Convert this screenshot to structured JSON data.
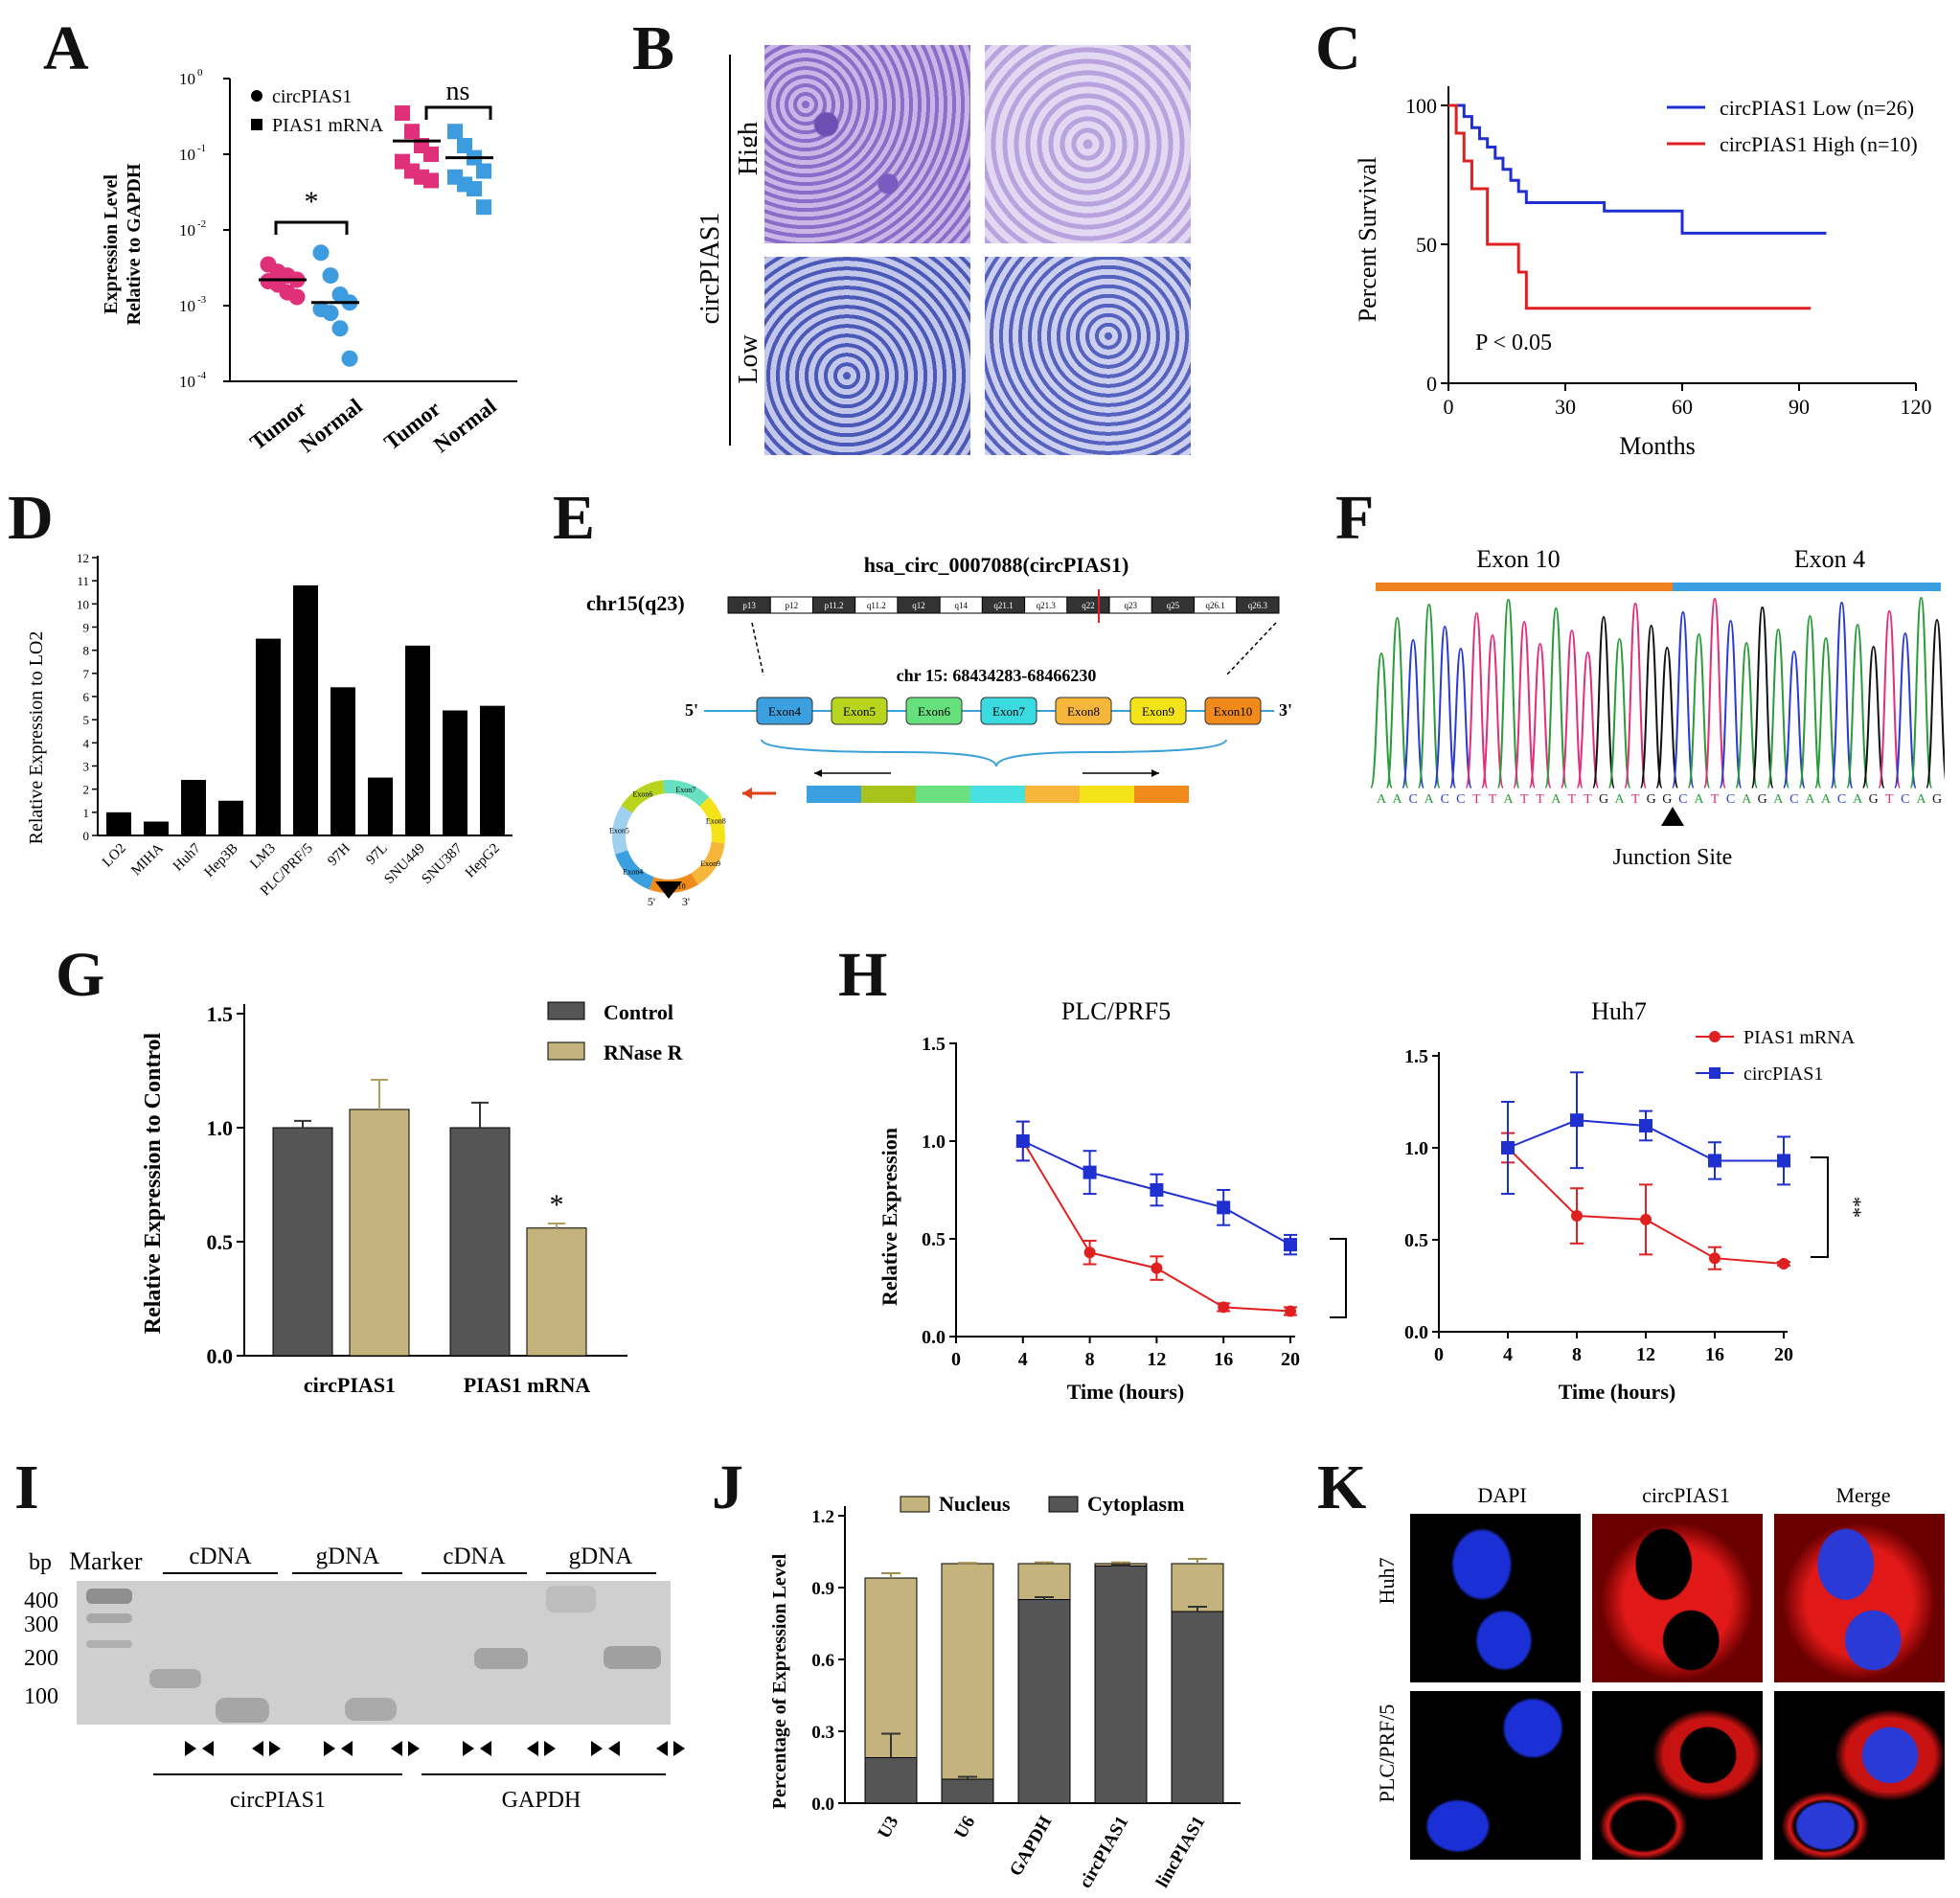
{
  "labels": {
    "A": "A",
    "B": "B",
    "C": "C",
    "D": "D",
    "E": "E",
    "F": "F",
    "G": "G",
    "H": "H",
    "I": "I",
    "J": "J",
    "K": "K"
  },
  "colors": {
    "pink": "#e0307a",
    "blue_dot": "#3d9be0",
    "blue_line": "#1f2fd0",
    "red_line": "#e02020",
    "bar_black": "#000000",
    "bar_gray": "#555555",
    "bar_khaki": "#c4b37c",
    "dapi_blue": "#1a2fd6",
    "circ_red": "#e01818"
  },
  "panelA": {
    "ylabel1": "Expression Level",
    "ylabel2": "Relative to GAPDH",
    "legend": [
      {
        "name": "circPIAS1",
        "marker": "circle"
      },
      {
        "name": "PIAS1 mRNA",
        "marker": "square"
      }
    ],
    "xticks": [
      "Tumor",
      "Normal",
      "Tumor",
      "Normal"
    ],
    "yticks": [
      "10",
      "10",
      "10",
      "10",
      "10"
    ],
    "yexp": [
      "0",
      "-1",
      "-2",
      "-3",
      "-4"
    ],
    "sig_left": "*",
    "sig_right": "ns"
  },
  "chart_data": [
    {
      "type": "scatter",
      "panel": "A",
      "yscale": "log",
      "ylim": [
        0.0001,
        1
      ],
      "categories": [
        "Tumor",
        "Normal",
        "Tumor",
        "Normal"
      ],
      "series": [
        {
          "name": "circPIAS1",
          "groups": [
            {
              "category": "Tumor",
              "values": [
                0.0035,
                0.0028,
                0.0025,
                0.0022,
                0.0021,
                0.0019,
                0.0015,
                0.0013
              ],
              "median": 0.0022
            },
            {
              "category": "Normal",
              "values": [
                0.005,
                0.0025,
                0.0014,
                0.0011,
                0.0009,
                0.0008,
                0.0005,
                0.0002
              ],
              "median": 0.0011
            }
          ]
        },
        {
          "name": "PIAS1 mRNA",
          "groups": [
            {
              "category": "Tumor",
              "values": [
                0.35,
                0.2,
                0.13,
                0.1,
                0.08,
                0.06,
                0.05,
                0.045
              ],
              "median": 0.15
            },
            {
              "category": "Normal",
              "values": [
                0.2,
                0.13,
                0.09,
                0.06,
                0.05,
                0.04,
                0.035,
                0.02
              ],
              "median": 0.09
            }
          ]
        }
      ]
    },
    {
      "type": "line",
      "panel": "C",
      "title": "",
      "xlabel": "Months",
      "ylabel": "Percent Survival",
      "xlim": [
        0,
        120
      ],
      "ylim": [
        0,
        100
      ],
      "xticks": [
        "0",
        "30",
        "60",
        "90",
        "120"
      ],
      "yticks": [
        "0",
        "50",
        "100"
      ],
      "annotation": "P < 0.05",
      "series": [
        {
          "name": "circPIAS1 Low (n=26)",
          "x": [
            0,
            4,
            6,
            8,
            10,
            12,
            14,
            16,
            18,
            20,
            24,
            40,
            60,
            97
          ],
          "y": [
            100,
            96,
            92,
            88,
            85,
            81,
            77,
            73,
            69,
            65,
            65,
            62,
            54,
            54
          ]
        },
        {
          "name": "circPIAS1 High (n=10)",
          "x": [
            0,
            2,
            4,
            6,
            10,
            18,
            20,
            93
          ],
          "y": [
            100,
            90,
            80,
            70,
            50,
            40,
            27,
            27
          ]
        }
      ]
    },
    {
      "type": "bar",
      "panel": "D",
      "ylabel": "Relative Expression to LO2",
      "ylim": [
        0,
        12
      ],
      "yticks": [
        "0",
        "1",
        "2",
        "3",
        "4",
        "5",
        "6",
        "7",
        "8",
        "9",
        "10",
        "11",
        "12"
      ],
      "categories": [
        "LO2",
        "MIHA",
        "Huh7",
        "Hep3B",
        "LM3",
        "PLC/PRF/5",
        "97H",
        "97L",
        "SNU449",
        "SNU387",
        "HepG2"
      ],
      "values": [
        1.0,
        0.6,
        2.4,
        1.5,
        8.5,
        10.8,
        6.4,
        2.5,
        8.2,
        5.4,
        5.6
      ]
    },
    {
      "type": "bar",
      "panel": "G",
      "ylabel": "Relative Expression to Control",
      "ylim": [
        0,
        1.5
      ],
      "yticks": [
        "0.0",
        "0.5",
        "1.0",
        "1.5"
      ],
      "categories": [
        "circPIAS1",
        "PIAS1 mRNA"
      ],
      "series": [
        {
          "name": "Control",
          "values": [
            1.0,
            1.0
          ],
          "errors": [
            0.03,
            0.11
          ]
        },
        {
          "name": "RNase R",
          "values": [
            1.08,
            0.56
          ],
          "errors": [
            0.13,
            0.02
          ]
        }
      ],
      "annotation": "*"
    },
    {
      "type": "line",
      "panel": "H-left",
      "title": "PLC/PRF5",
      "xlabel": "Time (hours)",
      "ylabel": "Relative Expression",
      "xlim": [
        0,
        20
      ],
      "ylim": [
        0,
        1.5
      ],
      "xticks": [
        "0",
        "4",
        "8",
        "12",
        "16",
        "20"
      ],
      "yticks": [
        "0.0",
        "0.5",
        "1.0",
        "1.5"
      ],
      "x": [
        4,
        8,
        12,
        16,
        20
      ],
      "series": [
        {
          "name": "PIAS1 mRNA",
          "values": [
            1.0,
            0.43,
            0.35,
            0.15,
            0.13
          ],
          "errors": [
            0.1,
            0.06,
            0.06,
            0.02,
            0.02
          ]
        },
        {
          "name": "circPIAS1",
          "values": [
            1.0,
            0.84,
            0.75,
            0.66,
            0.47
          ],
          "errors": [
            0.1,
            0.11,
            0.08,
            0.09,
            0.05
          ]
        }
      ],
      "annotation": "**"
    },
    {
      "type": "line",
      "panel": "H-right",
      "title": "Huh7",
      "xlabel": "Time (hours)",
      "xlim": [
        0,
        20
      ],
      "ylim": [
        0,
        1.5
      ],
      "xticks": [
        "0",
        "4",
        "8",
        "12",
        "16",
        "20"
      ],
      "yticks": [
        "0.0",
        "0.5",
        "1.0",
        "1.5"
      ],
      "x": [
        4,
        8,
        12,
        16,
        20
      ],
      "series": [
        {
          "name": "PIAS1 mRNA",
          "values": [
            1.0,
            0.63,
            0.61,
            0.4,
            0.37
          ],
          "errors": [
            0.08,
            0.15,
            0.19,
            0.06,
            0.01
          ]
        },
        {
          "name": "circPIAS1",
          "values": [
            1.0,
            1.15,
            1.12,
            0.93,
            0.93
          ],
          "errors": [
            0.25,
            0.26,
            0.08,
            0.1,
            0.13
          ]
        }
      ],
      "annotation": "**"
    },
    {
      "type": "bar",
      "panel": "J",
      "stacked": true,
      "ylabel": "Percentage of Expression Level",
      "ylim": [
        0,
        1.2
      ],
      "yticks": [
        "0.0",
        "0.3",
        "0.6",
        "0.9",
        "1.2"
      ],
      "categories": [
        "U3",
        "U6",
        "GAPDH",
        "circPIAS1",
        "lincPIAS1"
      ],
      "series": [
        {
          "name": "Cytoplasm",
          "values": [
            0.19,
            0.1,
            0.85,
            0.99,
            0.8
          ],
          "errors": [
            0.1,
            0.01,
            0.01,
            0.003,
            0.02
          ]
        },
        {
          "name": "Nucleus",
          "values": [
            0.75,
            0.9,
            0.15,
            0.01,
            0.2
          ],
          "errors": [
            0.02,
            0.003,
            0.005,
            0.005,
            0.02
          ]
        }
      ]
    }
  ],
  "panelB": {
    "ylabel": "circPIAS1",
    "rows": [
      "High",
      "Low"
    ]
  },
  "panelE": {
    "title": "hsa_circ_0007088(circPIAS1)",
    "chrom": "chr15(q23)",
    "coords": "chr 15: 68434283-68466230",
    "bands": [
      "p13",
      "p12",
      "p11.2",
      "q11.2",
      "q12",
      "q14",
      "q21.1",
      "q21.3",
      "q22",
      "q23",
      "q25",
      "q26.1",
      "q26.3"
    ],
    "exons": [
      "Exon4",
      "Exon5",
      "Exon6",
      "Exon7",
      "Exon8",
      "Exon9",
      "Exon10"
    ],
    "five": "5'",
    "three": "3'"
  },
  "panelF": {
    "exon_left": "Exon 10",
    "exon_right": "Exon 4",
    "sequence": "AACACCTTATTATTGATGGCATCAGACAACAGTCAG",
    "junction": "Junction Site"
  },
  "panelI": {
    "bp": "bp",
    "marker": "Marker",
    "lanes": [
      "cDNA",
      "gDNA",
      "cDNA",
      "gDNA"
    ],
    "sizes": [
      "400",
      "300",
      "200",
      "100"
    ],
    "genes": [
      "circPIAS1",
      "GAPDH"
    ]
  },
  "panelJlegend": [
    "Nucleus",
    "Cytoplasm"
  ],
  "panelK": {
    "cols": [
      "DAPI",
      "circPIAS1",
      "Merge"
    ],
    "rows": [
      "Huh7",
      "PLC/PRF/5"
    ]
  }
}
